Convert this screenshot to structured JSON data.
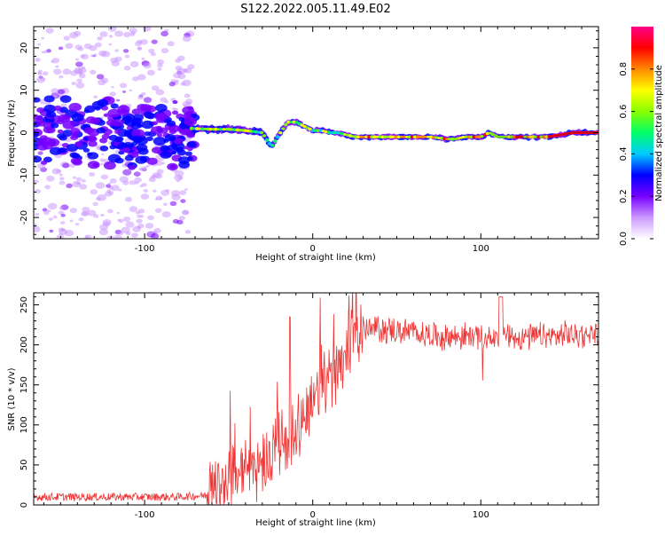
{
  "chart_data": [
    {
      "type": "heatmap",
      "title": "S122.2022.005.11.49.E02",
      "xlabel": "Height of straight line (km)",
      "ylabel": "Frequency (Hz)",
      "xlim": [
        -166,
        170
      ],
      "ylim": [
        -25,
        25
      ],
      "xticks": [
        -100,
        0,
        100
      ],
      "yticks": [
        -20,
        -10,
        0,
        10,
        20
      ],
      "colorbar": {
        "label": "Normalized spectral amplitude",
        "range": [
          0,
          1
        ],
        "ticks": [
          "0.0",
          "0.2",
          "0.4",
          "0.6",
          "0.8"
        ],
        "colors": [
          "#ffffff",
          "#cc99ff",
          "#7700ff",
          "#0000ff",
          "#00ccff",
          "#00ff66",
          "#88ff00",
          "#ffff00",
          "#ff8800",
          "#ff0000",
          "#ff0088"
        ]
      },
      "ridge": {
        "x": [
          -166,
          -140,
          -110,
          -90,
          -72,
          -60,
          -50,
          -40,
          -30,
          -26,
          -24,
          -20,
          -15,
          -10,
          -5,
          0,
          5,
          10,
          15,
          20,
          25,
          40,
          60,
          70,
          80,
          85,
          90,
          100,
          105,
          110,
          140,
          155,
          170
        ],
        "y": [
          1,
          1,
          1,
          1,
          1,
          0.8,
          0.8,
          0.5,
          0,
          -2.5,
          -3,
          -0.5,
          2.5,
          2.5,
          1.5,
          0.5,
          0.5,
          0,
          0,
          -0.5,
          -1,
          -1,
          -1,
          -1,
          -1.5,
          -1.5,
          -1,
          -1,
          0,
          -1,
          -1,
          0,
          0
        ]
      }
    },
    {
      "type": "line",
      "xlabel": "Height of straight line (km)",
      "ylabel": "SNR (10 * v/v)",
      "xlim": [
        -166,
        170
      ],
      "ylim": [
        0,
        265
      ],
      "xticks": [
        -100,
        0,
        100
      ],
      "yticks": [
        0,
        50,
        100,
        150,
        200,
        250
      ],
      "color": "#ee3333",
      "trend": {
        "x": [
          -166,
          -120,
          -80,
          -63,
          -58,
          -50,
          -40,
          -30,
          -20,
          -10,
          0,
          10,
          20,
          25,
          30,
          40,
          60,
          80,
          100,
          120,
          140,
          170
        ],
        "y": [
          10,
          10,
          10,
          12,
          25,
          35,
          45,
          55,
          75,
          100,
          130,
          160,
          195,
          210,
          218,
          220,
          215,
          210,
          212,
          210,
          210,
          215
        ]
      }
    }
  ]
}
